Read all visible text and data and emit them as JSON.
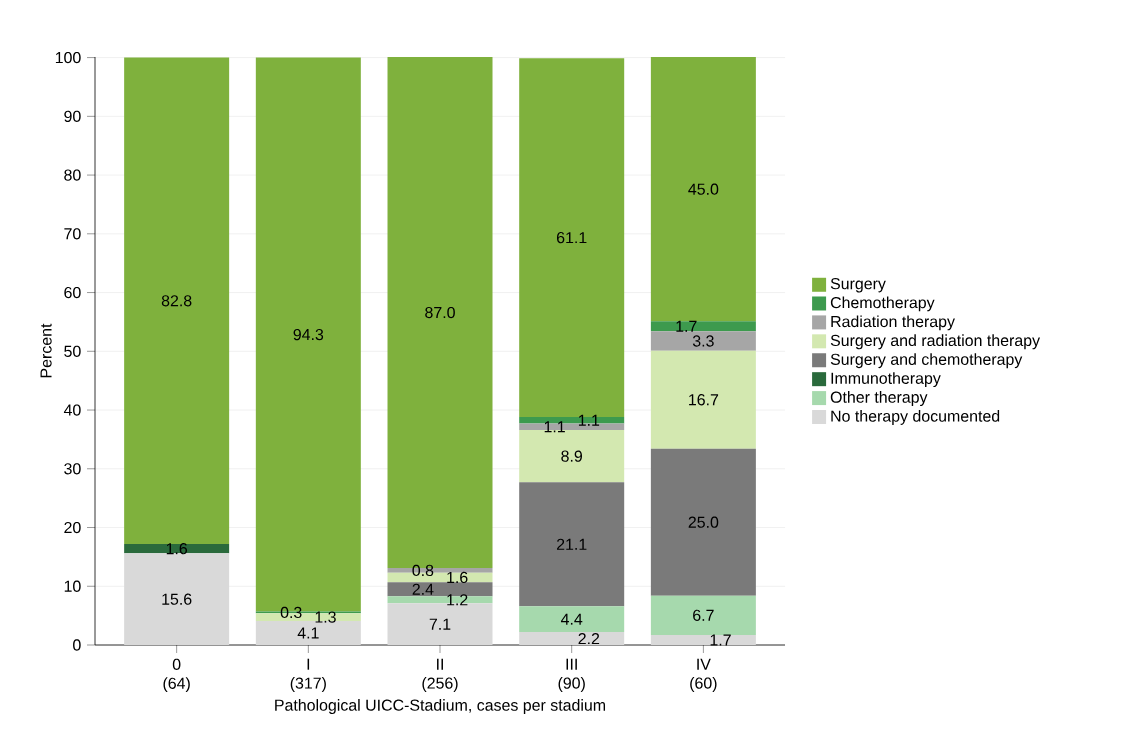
{
  "chart_data": {
    "type": "bar",
    "stacked": true,
    "xlabel": "Pathological UICC-Stadium, cases per stadium",
    "ylabel": "Percent",
    "categories": [
      "0 (64)",
      "I (317)",
      "II (256)",
      "III (90)",
      "IV (60)"
    ],
    "ylim": [
      0,
      100.1
    ],
    "yticks": [
      0,
      10,
      20,
      30,
      40,
      50,
      60,
      70,
      80,
      90,
      100
    ],
    "grid": "y",
    "legend": "right",
    "series": [
      {
        "name": "No therapy documented",
        "color": "#d9d9d9",
        "values": [
          15.6,
          4.1,
          7.1,
          2.2,
          1.7
        ],
        "value_labels": [
          "15.6",
          "4.1",
          "7.1",
          "2.2",
          "1.7"
        ]
      },
      {
        "name": "Other therapy",
        "color": "#a6d9ad",
        "values": [
          0,
          0,
          1.2,
          4.4,
          6.7
        ],
        "value_labels": [
          null,
          null,
          "1.2",
          "4.4",
          "6.7"
        ]
      },
      {
        "name": "Immunotherapy",
        "color": "#2a6a3c",
        "values": [
          1.6,
          0,
          0,
          0,
          0
        ],
        "value_labels": [
          "1.6",
          null,
          null,
          null,
          null
        ]
      },
      {
        "name": "Surgery and chemotherapy",
        "color": "#7a7a7a",
        "values": [
          0,
          0,
          2.4,
          21.1,
          25.0
        ],
        "value_labels": [
          null,
          null,
          "2.4",
          "21.1",
          "25.0"
        ]
      },
      {
        "name": "Surgery and radiation therapy",
        "color": "#d3e8b0",
        "values": [
          0,
          1.3,
          1.6,
          8.9,
          16.7
        ],
        "value_labels": [
          null,
          "1.3",
          "1.6",
          "8.9",
          "16.7"
        ]
      },
      {
        "name": "Radiation therapy",
        "color": "#a6a6a6",
        "values": [
          0,
          0,
          0.8,
          1.1,
          3.3
        ],
        "value_labels": [
          null,
          null,
          "0.8",
          "1.1",
          "3.3"
        ]
      },
      {
        "name": "Chemotherapy",
        "color": "#3d9a4e",
        "values": [
          0,
          0.3,
          0,
          1.1,
          1.7
        ],
        "value_labels": [
          null,
          "0.3",
          null,
          "1.1",
          "1.7"
        ]
      },
      {
        "name": "Surgery",
        "color": "#7fb13d",
        "values": [
          82.8,
          94.3,
          87.0,
          61.1,
          45.0
        ],
        "value_labels": [
          "82.8",
          "94.3",
          "87.0",
          "61.1",
          "45.0"
        ]
      }
    ]
  }
}
